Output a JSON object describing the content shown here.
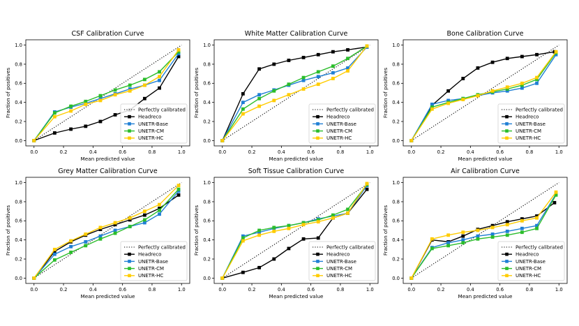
{
  "chart_data": [
    {
      "type": "line",
      "title": "CSF Calibration Curve",
      "xlabel": "Mean predicted value",
      "ylabel": "Fraction of positives",
      "xlim": [
        0,
        1
      ],
      "ylim": [
        0,
        1
      ],
      "xticks": [
        "0.0",
        "0.2",
        "0.4",
        "0.6",
        "0.8",
        "1.0"
      ],
      "yticks": [
        "0.0",
        "0.2",
        "0.4",
        "0.6",
        "0.8",
        "1.0"
      ],
      "legend_position": "lower-right",
      "reference": {
        "name": "Perfectly calibrated",
        "x": [
          0,
          1
        ],
        "y": [
          0,
          1
        ]
      },
      "series": [
        {
          "name": "Headreco",
          "color": "#000000",
          "x": [
            0,
            0.14,
            0.25,
            0.35,
            0.45,
            0.55,
            0.65,
            0.75,
            0.85,
            0.98
          ],
          "y": [
            0,
            0.08,
            0.12,
            0.15,
            0.2,
            0.27,
            0.32,
            0.44,
            0.55,
            0.88
          ]
        },
        {
          "name": "UNETR-Base",
          "color": "#1f7fd4",
          "x": [
            0,
            0.14,
            0.25,
            0.35,
            0.45,
            0.55,
            0.65,
            0.75,
            0.85,
            0.98
          ],
          "y": [
            0,
            0.3,
            0.35,
            0.39,
            0.44,
            0.49,
            0.54,
            0.58,
            0.63,
            0.91
          ]
        },
        {
          "name": "UNETR-CM",
          "color": "#2bbd2b",
          "x": [
            0,
            0.14,
            0.25,
            0.35,
            0.45,
            0.55,
            0.65,
            0.75,
            0.85,
            0.98
          ],
          "y": [
            0,
            0.29,
            0.36,
            0.41,
            0.47,
            0.53,
            0.58,
            0.64,
            0.72,
            0.93
          ]
        },
        {
          "name": "UNETR-HC",
          "color": "#ffcc00",
          "x": [
            0,
            0.14,
            0.25,
            0.35,
            0.45,
            0.55,
            0.65,
            0.75,
            0.85,
            0.98
          ],
          "y": [
            0,
            0.25,
            0.31,
            0.38,
            0.42,
            0.48,
            0.52,
            0.58,
            0.67,
            0.95
          ]
        }
      ]
    },
    {
      "type": "line",
      "title": "White Matter Calibration Curve",
      "xlabel": "Mean predicted value",
      "ylabel": "Fraction of positives",
      "xlim": [
        0,
        1
      ],
      "ylim": [
        0,
        1
      ],
      "xticks": [
        "0.0",
        "0.2",
        "0.4",
        "0.6",
        "0.8",
        "1.0"
      ],
      "yticks": [
        "0.0",
        "0.2",
        "0.4",
        "0.6",
        "0.8",
        "1.0"
      ],
      "legend_position": "lower-right",
      "reference": {
        "name": "Perfectly calibrated",
        "x": [
          0,
          1
        ],
        "y": [
          0,
          1
        ]
      },
      "series": [
        {
          "name": "Headreco",
          "color": "#000000",
          "x": [
            0,
            0.14,
            0.25,
            0.35,
            0.45,
            0.55,
            0.65,
            0.75,
            0.85,
            0.98
          ],
          "y": [
            0,
            0.49,
            0.75,
            0.8,
            0.84,
            0.87,
            0.9,
            0.93,
            0.95,
            0.98
          ]
        },
        {
          "name": "UNETR-Base",
          "color": "#1f7fd4",
          "x": [
            0,
            0.14,
            0.25,
            0.35,
            0.45,
            0.55,
            0.65,
            0.75,
            0.85,
            0.98
          ],
          "y": [
            0,
            0.4,
            0.48,
            0.53,
            0.58,
            0.63,
            0.67,
            0.71,
            0.76,
            0.98
          ]
        },
        {
          "name": "UNETR-CM",
          "color": "#2bbd2b",
          "x": [
            0,
            0.14,
            0.25,
            0.35,
            0.45,
            0.55,
            0.65,
            0.75,
            0.85,
            0.98
          ],
          "y": [
            0,
            0.33,
            0.44,
            0.52,
            0.59,
            0.66,
            0.72,
            0.78,
            0.86,
            0.99
          ]
        },
        {
          "name": "UNETR-HC",
          "color": "#ffcc00",
          "x": [
            0,
            0.14,
            0.25,
            0.35,
            0.45,
            0.55,
            0.65,
            0.75,
            0.85,
            0.98
          ],
          "y": [
            0,
            0.28,
            0.36,
            0.42,
            0.48,
            0.54,
            0.59,
            0.65,
            0.73,
            0.99
          ]
        }
      ]
    },
    {
      "type": "line",
      "title": "Bone Calibration Curve",
      "xlabel": "Mean predicted value",
      "ylabel": "Fraction of positives",
      "xlim": [
        0,
        1
      ],
      "ylim": [
        0,
        1
      ],
      "xticks": [
        "0.0",
        "0.2",
        "0.4",
        "0.6",
        "0.8",
        "1.0"
      ],
      "yticks": [
        "0.0",
        "0.2",
        "0.4",
        "0.6",
        "0.8",
        "1.0"
      ],
      "legend_position": "lower-right",
      "reference": {
        "name": "Perfectly calibrated",
        "x": [
          0,
          1
        ],
        "y": [
          0,
          1
        ]
      },
      "series": [
        {
          "name": "Headreco",
          "color": "#000000",
          "x": [
            0,
            0.14,
            0.25,
            0.35,
            0.45,
            0.55,
            0.65,
            0.75,
            0.85,
            0.97
          ],
          "y": [
            0,
            0.37,
            0.52,
            0.65,
            0.76,
            0.82,
            0.86,
            0.88,
            0.9,
            0.93
          ]
        },
        {
          "name": "UNETR-Base",
          "color": "#1f7fd4",
          "x": [
            0,
            0.14,
            0.25,
            0.35,
            0.45,
            0.55,
            0.65,
            0.75,
            0.85,
            0.98
          ],
          "y": [
            0,
            0.38,
            0.42,
            0.44,
            0.47,
            0.5,
            0.52,
            0.55,
            0.6,
            0.9
          ]
        },
        {
          "name": "UNETR-CM",
          "color": "#2bbd2b",
          "x": [
            0,
            0.14,
            0.25,
            0.35,
            0.45,
            0.55,
            0.65,
            0.75,
            0.85,
            0.98
          ],
          "y": [
            0,
            0.35,
            0.4,
            0.44,
            0.48,
            0.51,
            0.54,
            0.58,
            0.64,
            0.92
          ]
        },
        {
          "name": "UNETR-HC",
          "color": "#ffcc00",
          "x": [
            0,
            0.14,
            0.25,
            0.35,
            0.45,
            0.55,
            0.65,
            0.75,
            0.85,
            0.98
          ],
          "y": [
            0,
            0.33,
            0.39,
            0.43,
            0.47,
            0.52,
            0.56,
            0.6,
            0.66,
            0.93
          ]
        }
      ]
    },
    {
      "type": "line",
      "title": "Grey Matter Calibration Curve",
      "xlabel": "Mean predicted value",
      "ylabel": "Fraction of positives",
      "xlim": [
        0,
        1
      ],
      "ylim": [
        0,
        1
      ],
      "xticks": [
        "0.0",
        "0.2",
        "0.4",
        "0.6",
        "0.8",
        "1.0"
      ],
      "yticks": [
        "0.0",
        "0.2",
        "0.4",
        "0.6",
        "0.8",
        "1.0"
      ],
      "legend_position": "lower-right",
      "reference": {
        "name": "Perfectly calibrated",
        "x": [
          0,
          1
        ],
        "y": [
          0,
          1
        ]
      },
      "series": [
        {
          "name": "Headreco",
          "color": "#000000",
          "x": [
            0,
            0.14,
            0.25,
            0.35,
            0.45,
            0.55,
            0.65,
            0.75,
            0.85,
            0.98
          ],
          "y": [
            0,
            0.28,
            0.38,
            0.45,
            0.51,
            0.56,
            0.61,
            0.66,
            0.73,
            0.87
          ]
        },
        {
          "name": "UNETR-Base",
          "color": "#1f7fd4",
          "x": [
            0,
            0.14,
            0.25,
            0.35,
            0.45,
            0.55,
            0.65,
            0.75,
            0.85,
            0.98
          ],
          "y": [
            0,
            0.25,
            0.33,
            0.38,
            0.44,
            0.5,
            0.54,
            0.58,
            0.67,
            0.91
          ]
        },
        {
          "name": "UNETR-CM",
          "color": "#2bbd2b",
          "x": [
            0,
            0.14,
            0.25,
            0.35,
            0.45,
            0.55,
            0.65,
            0.75,
            0.85,
            0.98
          ],
          "y": [
            0,
            0.19,
            0.27,
            0.34,
            0.41,
            0.47,
            0.54,
            0.61,
            0.71,
            0.93
          ]
        },
        {
          "name": "UNETR-HC",
          "color": "#ffcc00",
          "x": [
            0,
            0.14,
            0.25,
            0.35,
            0.45,
            0.55,
            0.65,
            0.75,
            0.85,
            0.98
          ],
          "y": [
            0,
            0.3,
            0.39,
            0.46,
            0.53,
            0.58,
            0.63,
            0.7,
            0.77,
            0.97
          ]
        }
      ]
    },
    {
      "type": "line",
      "title": "Soft Tissue Calibration Curve",
      "xlabel": "Mean predicted value",
      "ylabel": "Fraction of positives",
      "xlim": [
        0,
        1
      ],
      "ylim": [
        0,
        1
      ],
      "xticks": [
        "0.0",
        "0.2",
        "0.4",
        "0.6",
        "0.8",
        "1.0"
      ],
      "yticks": [
        "0.0",
        "0.2",
        "0.4",
        "0.6",
        "0.8",
        "1.0"
      ],
      "legend_position": "lower-right",
      "reference": {
        "name": "Perfectly calibrated",
        "x": [
          0,
          1
        ],
        "y": [
          0,
          1
        ]
      },
      "series": [
        {
          "name": "Headreco",
          "color": "#000000",
          "x": [
            0,
            0.14,
            0.25,
            0.35,
            0.45,
            0.55,
            0.65,
            0.75,
            0.85,
            0.98
          ],
          "y": [
            0,
            0.06,
            0.11,
            0.2,
            0.31,
            0.41,
            0.42,
            0.63,
            0.68,
            0.93
          ]
        },
        {
          "name": "UNETR-Base",
          "color": "#1f7fd4",
          "x": [
            0,
            0.14,
            0.25,
            0.35,
            0.45,
            0.55,
            0.65,
            0.75,
            0.85,
            0.98
          ],
          "y": [
            0,
            0.44,
            0.48,
            0.52,
            0.55,
            0.58,
            0.62,
            0.65,
            0.68,
            0.97
          ]
        },
        {
          "name": "UNETR-CM",
          "color": "#2bbd2b",
          "x": [
            0,
            0.14,
            0.25,
            0.35,
            0.45,
            0.55,
            0.65,
            0.75,
            0.85,
            0.98
          ],
          "y": [
            0,
            0.42,
            0.5,
            0.53,
            0.55,
            0.58,
            0.61,
            0.66,
            0.72,
            0.98
          ]
        },
        {
          "name": "UNETR-HC",
          "color": "#ffcc00",
          "x": [
            0,
            0.14,
            0.25,
            0.35,
            0.45,
            0.55,
            0.65,
            0.75,
            0.85,
            0.98
          ],
          "y": [
            0,
            0.39,
            0.45,
            0.49,
            0.52,
            0.56,
            0.59,
            0.63,
            0.68,
            0.99
          ]
        }
      ]
    },
    {
      "type": "line",
      "title": "Air Calibration Curve",
      "xlabel": "Mean predicted value",
      "ylabel": "Fraction of positives",
      "xlim": [
        0,
        1
      ],
      "ylim": [
        0,
        1
      ],
      "xticks": [
        "0.0",
        "0.2",
        "0.4",
        "0.6",
        "0.8",
        "1.0"
      ],
      "yticks": [
        "0.0",
        "0.2",
        "0.4",
        "0.6",
        "0.8",
        "1.0"
      ],
      "legend_position": "lower-right",
      "reference": {
        "name": "Perfectly calibrated",
        "x": [
          0,
          1
        ],
        "y": [
          0,
          1
        ]
      },
      "series": [
        {
          "name": "Headreco",
          "color": "#000000",
          "x": [
            0,
            0.14,
            0.25,
            0.35,
            0.45,
            0.55,
            0.65,
            0.75,
            0.85,
            0.97
          ],
          "y": [
            0,
            0.4,
            0.38,
            0.44,
            0.51,
            0.55,
            0.59,
            0.62,
            0.65,
            0.79
          ]
        },
        {
          "name": "UNETR-Base",
          "color": "#1f7fd4",
          "x": [
            0,
            0.14,
            0.25,
            0.35,
            0.45,
            0.55,
            0.65,
            0.75,
            0.85,
            0.98
          ],
          "y": [
            0,
            0.32,
            0.37,
            0.4,
            0.44,
            0.46,
            0.49,
            0.52,
            0.55,
            0.88
          ]
        },
        {
          "name": "UNETR-CM",
          "color": "#2bbd2b",
          "x": [
            0,
            0.14,
            0.25,
            0.35,
            0.45,
            0.55,
            0.65,
            0.75,
            0.85,
            0.98
          ],
          "y": [
            0,
            0.31,
            0.34,
            0.37,
            0.41,
            0.43,
            0.45,
            0.48,
            0.52,
            0.87
          ]
        },
        {
          "name": "UNETR-HC",
          "color": "#ffcc00",
          "x": [
            0,
            0.14,
            0.25,
            0.35,
            0.45,
            0.55,
            0.65,
            0.75,
            0.85,
            0.98
          ],
          "y": [
            0,
            0.41,
            0.45,
            0.48,
            0.5,
            0.53,
            0.56,
            0.6,
            0.63,
            0.9
          ]
        }
      ]
    }
  ]
}
